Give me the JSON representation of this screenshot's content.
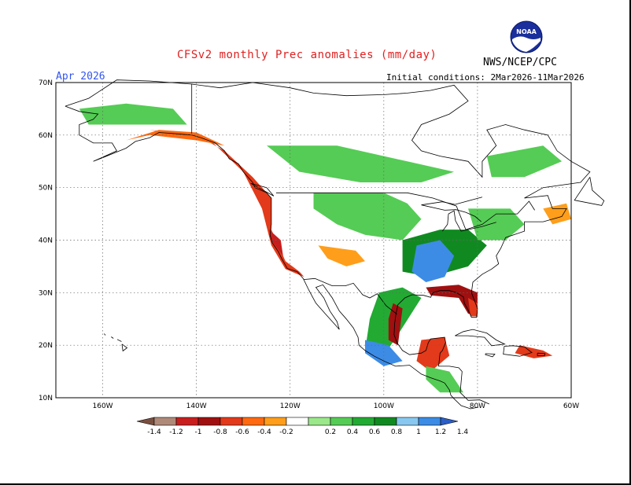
{
  "title": "CFSv2 monthly Prec anomalies (mm/day)",
  "agency": "NWS/NCEP/CPC",
  "logo_text": "NOAA",
  "month": "Apr 2026",
  "initial_conditions": "Initial conditions: 2Mar2026-11Mar2026",
  "axes": {
    "lat_labels": [
      "70N",
      "60N",
      "50N",
      "40N",
      "30N",
      "20N",
      "10N"
    ],
    "lon_labels": [
      "160W",
      "140W",
      "120W",
      "100W",
      "80W",
      "60W"
    ],
    "lat_range": [
      10,
      70
    ],
    "lon_range": [
      -170,
      -60
    ]
  },
  "colorbar": {
    "labels": [
      "-1.4",
      "-1.2",
      "-1",
      "-0.8",
      "-0.6",
      "-0.4",
      "-0.2",
      "0.2",
      "0.4",
      "0.6",
      "0.8",
      "1",
      "1.2",
      "1.4"
    ],
    "colors": [
      "#7a4f3f",
      "#b08a78",
      "#c81e1e",
      "#a01010",
      "#e23a1a",
      "#ff6a10",
      "#ff9e1a",
      "#ffffff",
      "#9ae88a",
      "#55cc55",
      "#22aa33",
      "#108a20",
      "#88c8f0",
      "#3c8ce6",
      "#2a5ec8"
    ]
  },
  "anomaly_regions": [
    {
      "name": "pacific-northwest-coast",
      "value": -0.8,
      "pts": [
        [
          -150,
          61
        ],
        [
          -140,
          60
        ],
        [
          -134,
          57
        ],
        [
          -128,
          52
        ],
        [
          -124,
          48
        ],
        [
          -124,
          42
        ],
        [
          -121,
          36
        ],
        [
          -118,
          34
        ],
        [
          -117,
          33
        ],
        [
          -121,
          34.5
        ],
        [
          -124,
          39
        ],
        [
          -126,
          46
        ],
        [
          -130,
          53
        ],
        [
          -137,
          59
        ]
      ]
    },
    {
      "name": "alaska-gulf-coast",
      "value": -0.6,
      "pts": [
        [
          -155,
          59
        ],
        [
          -148,
          61
        ],
        [
          -140,
          60.5
        ],
        [
          -134,
          58
        ],
        [
          -140,
          59
        ],
        [
          -150,
          60
        ]
      ]
    },
    {
      "name": "california-coast-dry",
      "value": -1.2,
      "pts": [
        [
          -124.5,
          42
        ],
        [
          -122,
          40
        ],
        [
          -121.5,
          37
        ],
        [
          -122.8,
          38.5
        ],
        [
          -124,
          40
        ]
      ]
    },
    {
      "name": "interior-west-light",
      "value": -0.3,
      "pts": [
        [
          -114,
          39
        ],
        [
          -106,
          38
        ],
        [
          -104,
          36
        ],
        [
          -108,
          35
        ],
        [
          -112,
          36.5
        ]
      ]
    },
    {
      "name": "great-plains-wet",
      "value": 0.4,
      "pts": [
        [
          -115,
          49
        ],
        [
          -100,
          49
        ],
        [
          -95,
          47
        ],
        [
          -92,
          44
        ],
        [
          -96,
          40
        ],
        [
          -104,
          41
        ],
        [
          -110,
          43
        ],
        [
          -115,
          46
        ]
      ]
    },
    {
      "name": "canada-wet",
      "value": 0.4,
      "pts": [
        [
          -125,
          58
        ],
        [
          -110,
          58
        ],
        [
          -95,
          55
        ],
        [
          -85,
          53
        ],
        [
          -92,
          51
        ],
        [
          -105,
          51
        ],
        [
          -118,
          53
        ]
      ]
    },
    {
      "name": "alaska-interior-wet",
      "value": 0.4,
      "pts": [
        [
          -165,
          65
        ],
        [
          -155,
          66
        ],
        [
          -145,
          65
        ],
        [
          -142,
          62
        ],
        [
          -152,
          62
        ],
        [
          -163,
          62
        ]
      ]
    },
    {
      "name": "ohio-valley-wet",
      "value": 0.8,
      "pts": [
        [
          -96,
          40
        ],
        [
          -88,
          42
        ],
        [
          -82,
          42
        ],
        [
          -78,
          39
        ],
        [
          -82,
          35
        ],
        [
          -90,
          33
        ],
        [
          -96,
          34
        ]
      ]
    },
    {
      "name": "mississippi-very-wet",
      "value": 1.3,
      "pts": [
        [
          -93,
          39
        ],
        [
          -88,
          40
        ],
        [
          -85,
          37
        ],
        [
          -87,
          33
        ],
        [
          -91,
          32
        ],
        [
          -94,
          34
        ]
      ]
    },
    {
      "name": "northeast-wet",
      "value": 0.5,
      "pts": [
        [
          -82,
          46
        ],
        [
          -73,
          46
        ],
        [
          -70,
          43
        ],
        [
          -74,
          40
        ],
        [
          -80,
          40
        ]
      ]
    },
    {
      "name": "texas-mexico-wet",
      "value": 0.6,
      "pts": [
        [
          -101,
          30
        ],
        [
          -96,
          31
        ],
        [
          -92,
          29
        ],
        [
          -97,
          22
        ],
        [
          -100,
          18
        ],
        [
          -104,
          19
        ],
        [
          -103,
          25
        ]
      ]
    },
    {
      "name": "gulf-coast-dry",
      "value": -0.9,
      "pts": [
        [
          -91,
          31
        ],
        [
          -84,
          31.5
        ],
        [
          -80,
          30
        ],
        [
          -80,
          26
        ],
        [
          -82,
          26
        ],
        [
          -84,
          29
        ],
        [
          -90,
          29.5
        ]
      ]
    },
    {
      "name": "florida-dry",
      "value": -0.7,
      "pts": [
        [
          -82,
          29
        ],
        [
          -80,
          28
        ],
        [
          -80,
          25.5
        ],
        [
          -81.5,
          25.5
        ]
      ]
    },
    {
      "name": "texas-coast-dry",
      "value": -0.9,
      "pts": [
        [
          -98,
          28
        ],
        [
          -96,
          27
        ],
        [
          -97,
          20
        ],
        [
          -99,
          21
        ],
        [
          -99,
          25
        ]
      ]
    },
    {
      "name": "yucatan-dry",
      "value": -0.8,
      "pts": [
        [
          -92,
          21
        ],
        [
          -87,
          21.5
        ],
        [
          -86,
          18
        ],
        [
          -90,
          15
        ],
        [
          -93,
          17
        ]
      ]
    },
    {
      "name": "southern-mexico-very-wet",
      "value": 1.2,
      "pts": [
        [
          -104,
          21
        ],
        [
          -99,
          20
        ],
        [
          -96,
          17
        ],
        [
          -100,
          16
        ],
        [
          -104,
          18.5
        ]
      ]
    },
    {
      "name": "central-america-wet",
      "value": 0.5,
      "pts": [
        [
          -91,
          16
        ],
        [
          -86,
          15
        ],
        [
          -83,
          11
        ],
        [
          -88,
          11
        ],
        [
          -91,
          13.5
        ]
      ]
    },
    {
      "name": "nova-scotia-dry",
      "value": -0.3,
      "pts": [
        [
          -66,
          46
        ],
        [
          -61,
          47
        ],
        [
          -60,
          44
        ],
        [
          -64,
          43
        ]
      ]
    },
    {
      "name": "quebec-wet",
      "value": 0.4,
      "pts": [
        [
          -78,
          56
        ],
        [
          -66,
          58
        ],
        [
          -62,
          55
        ],
        [
          -70,
          52
        ],
        [
          -77,
          52
        ]
      ]
    },
    {
      "name": "caribbean-dry",
      "value": -0.7,
      "pts": [
        [
          -71,
          20
        ],
        [
          -66,
          19
        ],
        [
          -64,
          18
        ],
        [
          -68,
          17.5
        ],
        [
          -72,
          18.5
        ]
      ]
    }
  ]
}
